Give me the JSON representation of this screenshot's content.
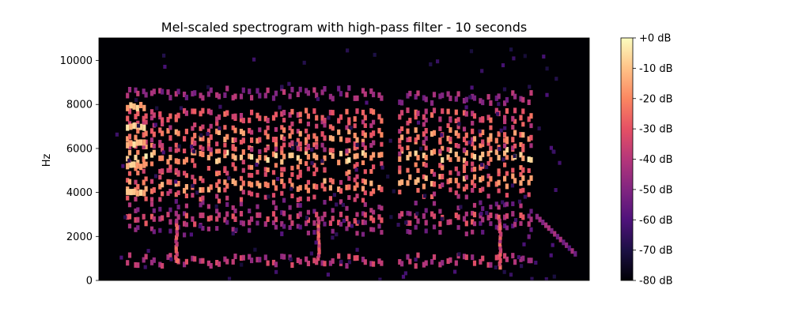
{
  "chart_data": {
    "type": "heatmap",
    "title": "Mel-scaled spectrogram with high-pass filter - 10 seconds",
    "xlabel": "",
    "ylabel": "Hz",
    "ylim": [
      0,
      11025
    ],
    "y_ticks": [
      0,
      2000,
      4000,
      6000,
      8000,
      10000
    ],
    "y_tick_labels": [
      "0",
      "2000",
      "4000",
      "6000",
      "8000",
      "10000"
    ],
    "x_duration_seconds": 10,
    "x_ticks_visible": false,
    "colormap": "magma",
    "colorbar": {
      "range_db": [
        -80,
        0
      ],
      "ticks": [
        0,
        -10,
        -20,
        -30,
        -40,
        -50,
        -60,
        -70,
        -80
      ],
      "tick_labels": [
        "+0 dB",
        "-10 dB",
        "-20 dB",
        "-30 dB",
        "-40 dB",
        "-50 dB",
        "-60 dB",
        "-70 dB",
        "-80 dB"
      ],
      "position": "right"
    },
    "background_db": -80,
    "harmonic_bands_hz": [
      900,
      2800,
      4300,
      5600,
      6600,
      7500
    ],
    "segments": [
      {
        "start_s": 0.55,
        "end_s": 5.85,
        "note_count": 32,
        "harmonics_hz": [
          900,
          2800,
          4300,
          5600,
          6600,
          7500,
          8500
        ]
      },
      {
        "start_s": 6.1,
        "end_s": 8.9,
        "note_count": 17,
        "harmonics_hz": [
          900,
          2800,
          4500,
          5700,
          6600,
          7500,
          8300
        ]
      }
    ],
    "loud_onset": {
      "start_s": 0.55,
      "end_s": 0.9,
      "bands_hz": [
        4000,
        5200,
        6200,
        7000,
        7900
      ],
      "level_db": -8
    }
  }
}
